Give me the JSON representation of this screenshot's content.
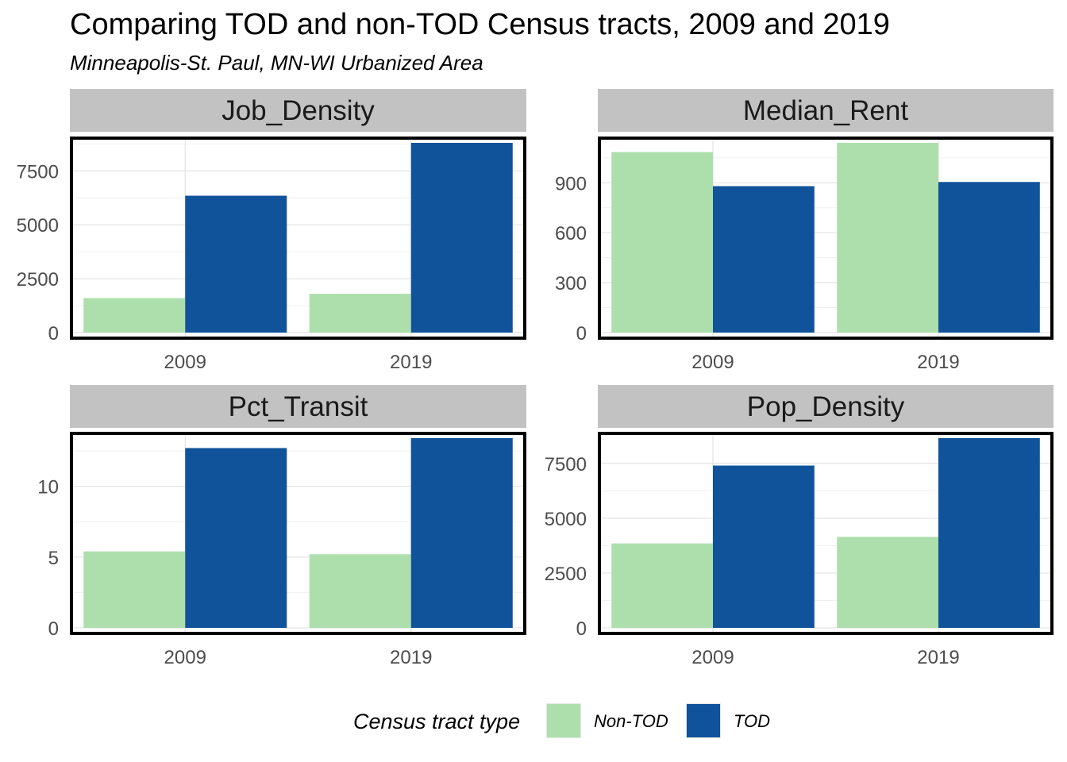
{
  "title": "Comparing TOD and non-TOD Census tracts, 2009 and 2019",
  "subtitle": "Minneapolis-St. Paul, MN-WI Urbanized Area",
  "legend": {
    "title": "Census tract type",
    "items": [
      {
        "label": "Non-TOD",
        "color": "#addfad"
      },
      {
        "label": "TOD",
        "color": "#10539a"
      }
    ]
  },
  "chart_data": [
    {
      "type": "bar",
      "title": "Job_Density",
      "categories": [
        "2009",
        "2019"
      ],
      "series": [
        {
          "name": "Non-TOD",
          "values": [
            1600,
            1800
          ]
        },
        {
          "name": "TOD",
          "values": [
            6350,
            8800
          ]
        }
      ],
      "yticks": [
        0,
        2500,
        5000,
        7500
      ],
      "ylim": [
        0,
        8800
      ]
    },
    {
      "type": "bar",
      "title": "Median_Rent",
      "categories": [
        "2009",
        "2019"
      ],
      "series": [
        {
          "name": "Non-TOD",
          "values": [
            1085,
            1140
          ]
        },
        {
          "name": "TOD",
          "values": [
            880,
            905
          ]
        }
      ],
      "yticks": [
        0,
        300,
        600,
        900
      ],
      "ylim": [
        0,
        1140
      ]
    },
    {
      "type": "bar",
      "title": "Pct_Transit",
      "categories": [
        "2009",
        "2019"
      ],
      "series": [
        {
          "name": "Non-TOD",
          "values": [
            5.4,
            5.2
          ]
        },
        {
          "name": "TOD",
          "values": [
            12.7,
            13.4
          ]
        }
      ],
      "yticks": [
        0,
        5,
        10
      ],
      "ylim": [
        0,
        13.4
      ]
    },
    {
      "type": "bar",
      "title": "Pop_Density",
      "categories": [
        "2009",
        "2019"
      ],
      "series": [
        {
          "name": "Non-TOD",
          "values": [
            3850,
            4150
          ]
        },
        {
          "name": "TOD",
          "values": [
            7400,
            8650
          ]
        }
      ],
      "yticks": [
        0,
        2500,
        5000,
        7500
      ],
      "ylim": [
        0,
        8650
      ]
    }
  ]
}
